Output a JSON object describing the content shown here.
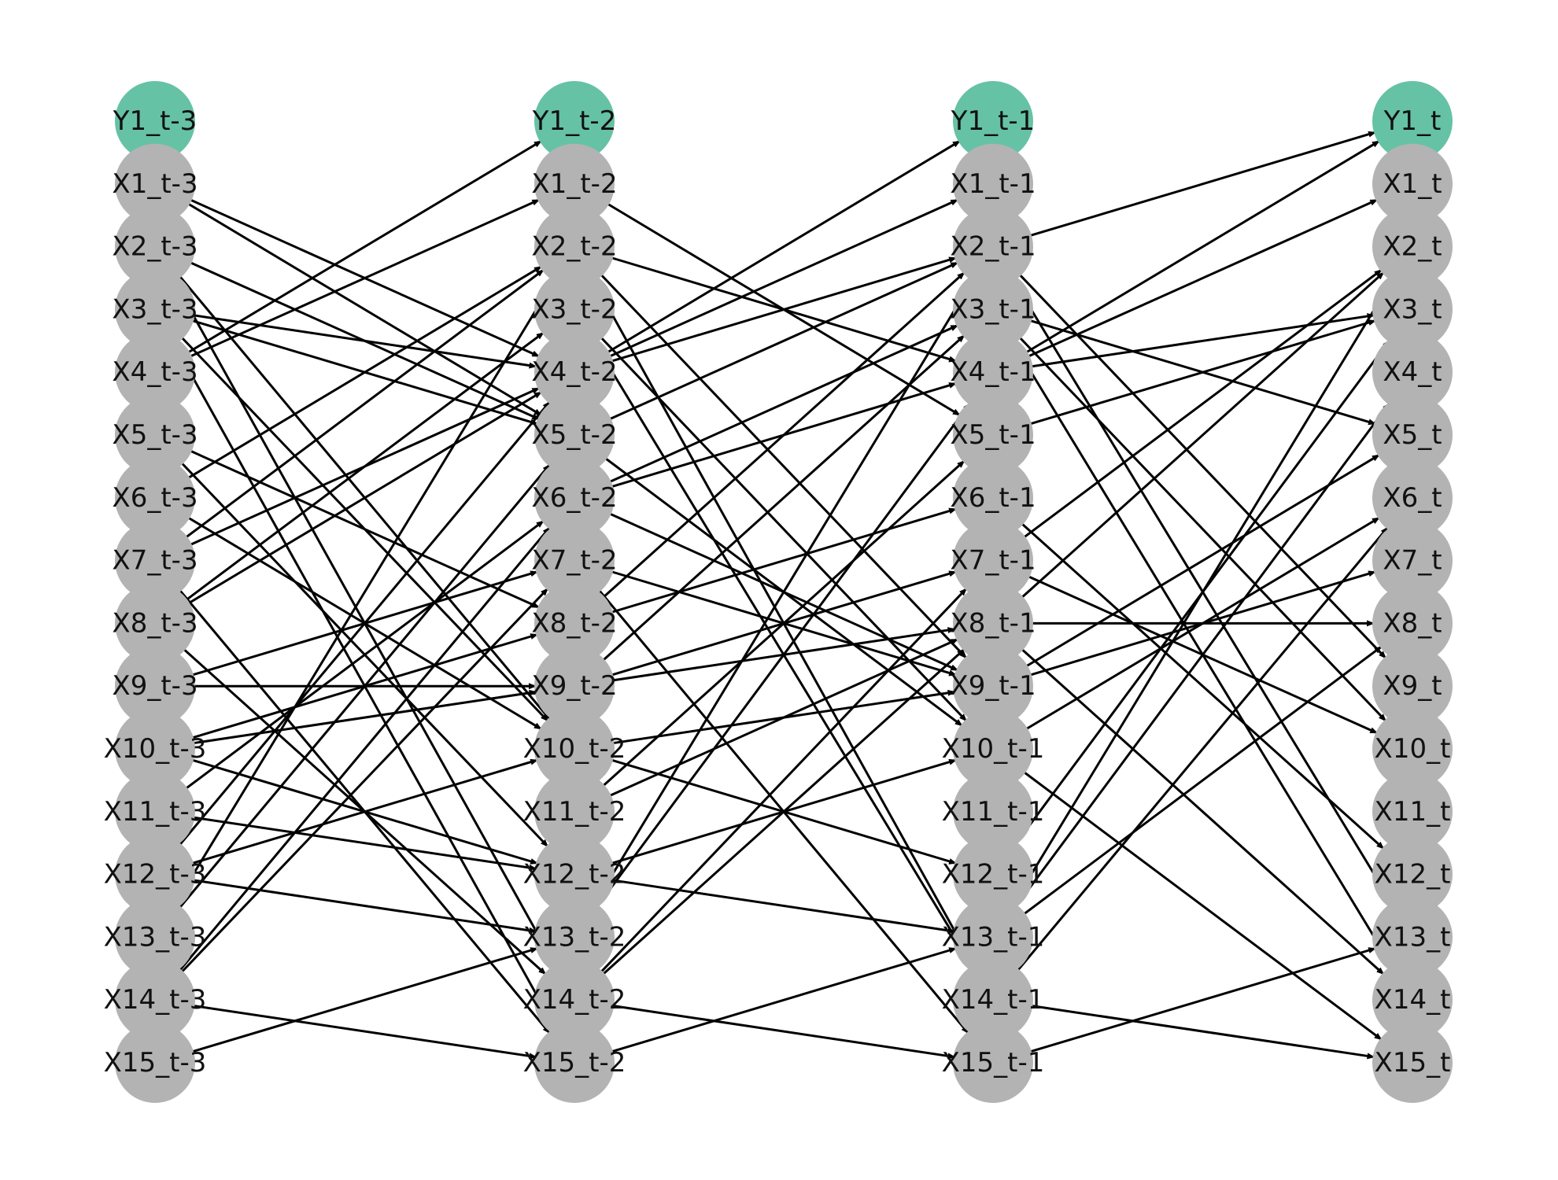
{
  "colors": {
    "target_node": "#66c2a5",
    "feature_node": "#b3b3b3",
    "edge": "#000000",
    "background": "#ffffff"
  },
  "columns": [
    {
      "suffix": "_t-3",
      "labels": [
        "Y1_t-3",
        "X1_t-3",
        "X2_t-3",
        "X3_t-3",
        "X4_t-3",
        "X5_t-3",
        "X6_t-3",
        "X7_t-3",
        "X8_t-3",
        "X9_t-3",
        "X10_t-3",
        "X11_t-3",
        "X12_t-3",
        "X13_t-3",
        "X14_t-3",
        "X15_t-3"
      ]
    },
    {
      "suffix": "_t-2",
      "labels": [
        "Y1_t-2",
        "X1_t-2",
        "X2_t-2",
        "X3_t-2",
        "X4_t-2",
        "X5_t-2",
        "X6_t-2",
        "X7_t-2",
        "X8_t-2",
        "X9_t-2",
        "X10_t-2",
        "X11_t-2",
        "X12_t-2",
        "X13_t-2",
        "X14_t-2",
        "X15_t-2"
      ]
    },
    {
      "suffix": "_t-1",
      "labels": [
        "Y1_t-1",
        "X1_t-1",
        "X2_t-1",
        "X3_t-1",
        "X4_t-1",
        "X5_t-1",
        "X6_t-1",
        "X7_t-1",
        "X8_t-1",
        "X9_t-1",
        "X10_t-1",
        "X11_t-1",
        "X12_t-1",
        "X13_t-1",
        "X14_t-1",
        "X15_t-1"
      ]
    },
    {
      "suffix": "_t",
      "labels": [
        "Y1_t",
        "X1_t",
        "X2_t",
        "X3_t",
        "X4_t",
        "X5_t",
        "X6_t",
        "X7_t",
        "X8_t",
        "X9_t",
        "X10_t",
        "X11_t",
        "X12_t",
        "X13_t",
        "X14_t",
        "X15_t"
      ]
    }
  ],
  "edges_t3_to_t2": [
    [
      "X1",
      "X4"
    ],
    [
      "X1",
      "X5"
    ],
    [
      "X2",
      "X5"
    ],
    [
      "X2",
      "X10"
    ],
    [
      "X2",
      "X14"
    ],
    [
      "X3",
      "X4"
    ],
    [
      "X3",
      "X5"
    ],
    [
      "X3",
      "X10"
    ],
    [
      "X3",
      "X15"
    ],
    [
      "X4",
      "Y1"
    ],
    [
      "X4",
      "X1"
    ],
    [
      "X5",
      "X8"
    ],
    [
      "X5",
      "X12"
    ],
    [
      "X6",
      "X2"
    ],
    [
      "X6",
      "X10"
    ],
    [
      "X7",
      "X2"
    ],
    [
      "X7",
      "X4"
    ],
    [
      "X7",
      "X15"
    ],
    [
      "X8",
      "X3"
    ],
    [
      "X8",
      "X4"
    ],
    [
      "X8",
      "X14"
    ],
    [
      "X9",
      "X7"
    ],
    [
      "X9",
      "X9"
    ],
    [
      "X10",
      "X8"
    ],
    [
      "X10",
      "X9"
    ],
    [
      "X10",
      "X12"
    ],
    [
      "X11",
      "X6"
    ],
    [
      "X11",
      "X12"
    ],
    [
      "X12",
      "X4"
    ],
    [
      "X12",
      "X10"
    ],
    [
      "X12",
      "X13"
    ],
    [
      "X13",
      "X5"
    ],
    [
      "X13",
      "X2"
    ],
    [
      "X14",
      "X7"
    ],
    [
      "X14",
      "X6"
    ],
    [
      "X14",
      "X15"
    ],
    [
      "X15",
      "X13"
    ]
  ],
  "edges_t2_to_t1": [
    [
      "X1",
      "X5"
    ],
    [
      "X2",
      "X9"
    ],
    [
      "X2",
      "X14"
    ],
    [
      "X2",
      "X4"
    ],
    [
      "X3",
      "X10"
    ],
    [
      "X3",
      "X14"
    ],
    [
      "X4",
      "Y1"
    ],
    [
      "X4",
      "X1"
    ],
    [
      "X4",
      "X2"
    ],
    [
      "X5",
      "X2"
    ],
    [
      "X5",
      "X10"
    ],
    [
      "X6",
      "X4"
    ],
    [
      "X6",
      "X3"
    ],
    [
      "X6",
      "X9"
    ],
    [
      "X7",
      "X9"
    ],
    [
      "X7",
      "X15"
    ],
    [
      "X8",
      "X2"
    ],
    [
      "X8",
      "X6"
    ],
    [
      "X9",
      "X7"
    ],
    [
      "X9",
      "X8"
    ],
    [
      "X9",
      "X3"
    ],
    [
      "X10",
      "X9"
    ],
    [
      "X10",
      "X12"
    ],
    [
      "X11",
      "X8"
    ],
    [
      "X11",
      "X5"
    ],
    [
      "X12",
      "X10"
    ],
    [
      "X12",
      "X13"
    ],
    [
      "X13",
      "X2"
    ],
    [
      "X13",
      "X4"
    ],
    [
      "X14",
      "X8"
    ],
    [
      "X14",
      "X7"
    ],
    [
      "X14",
      "X15"
    ],
    [
      "X15",
      "X13"
    ]
  ],
  "edges_t1_to_t": [
    [
      "X2",
      "Y1"
    ],
    [
      "X2",
      "X9"
    ],
    [
      "X2",
      "X13"
    ],
    [
      "X3",
      "X5"
    ],
    [
      "X3",
      "X10"
    ],
    [
      "X3",
      "X14"
    ],
    [
      "X4",
      "Y1"
    ],
    [
      "X4",
      "X1"
    ],
    [
      "X4",
      "X3"
    ],
    [
      "X5",
      "X3"
    ],
    [
      "X6",
      "X12"
    ],
    [
      "X7",
      "X2"
    ],
    [
      "X7",
      "X10"
    ],
    [
      "X8",
      "X2"
    ],
    [
      "X8",
      "X8"
    ],
    [
      "X8",
      "X14"
    ],
    [
      "X9",
      "X7"
    ],
    [
      "X9",
      "X5"
    ],
    [
      "X10",
      "X6"
    ],
    [
      "X10",
      "X15"
    ],
    [
      "X12",
      "X3"
    ],
    [
      "X13",
      "X4"
    ],
    [
      "X13",
      "X2"
    ],
    [
      "X13",
      "X8"
    ],
    [
      "X14",
      "X6"
    ],
    [
      "X14",
      "X15"
    ],
    [
      "X15",
      "X13"
    ]
  ]
}
